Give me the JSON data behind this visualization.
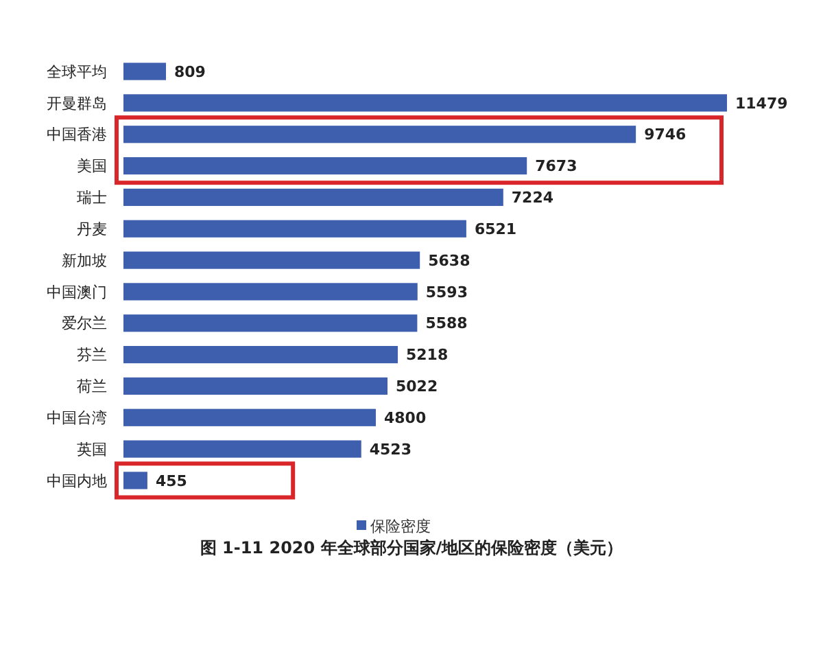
{
  "chart_data": {
    "type": "bar",
    "orientation": "horizontal",
    "title": "图 1-11 2020 年全球部分国家/地区的保险密度（美元）",
    "categories": [
      "全球平均",
      "开曼群岛",
      "中国香港",
      "美国",
      "瑞士",
      "丹麦",
      "新加坡",
      "中国澳门",
      "爱尔兰",
      "芬兰",
      "荷兰",
      "中国台湾",
      "英国",
      "中国内地"
    ],
    "series": [
      {
        "name": "保险密度",
        "color": "#3d5fae",
        "values": [
          809,
          11479,
          9746,
          7673,
          7224,
          6521,
          5638,
          5593,
          5588,
          5218,
          5022,
          4800,
          4523,
          455
        ]
      }
    ],
    "data_labels": true,
    "legend": "bottom"
  }
}
